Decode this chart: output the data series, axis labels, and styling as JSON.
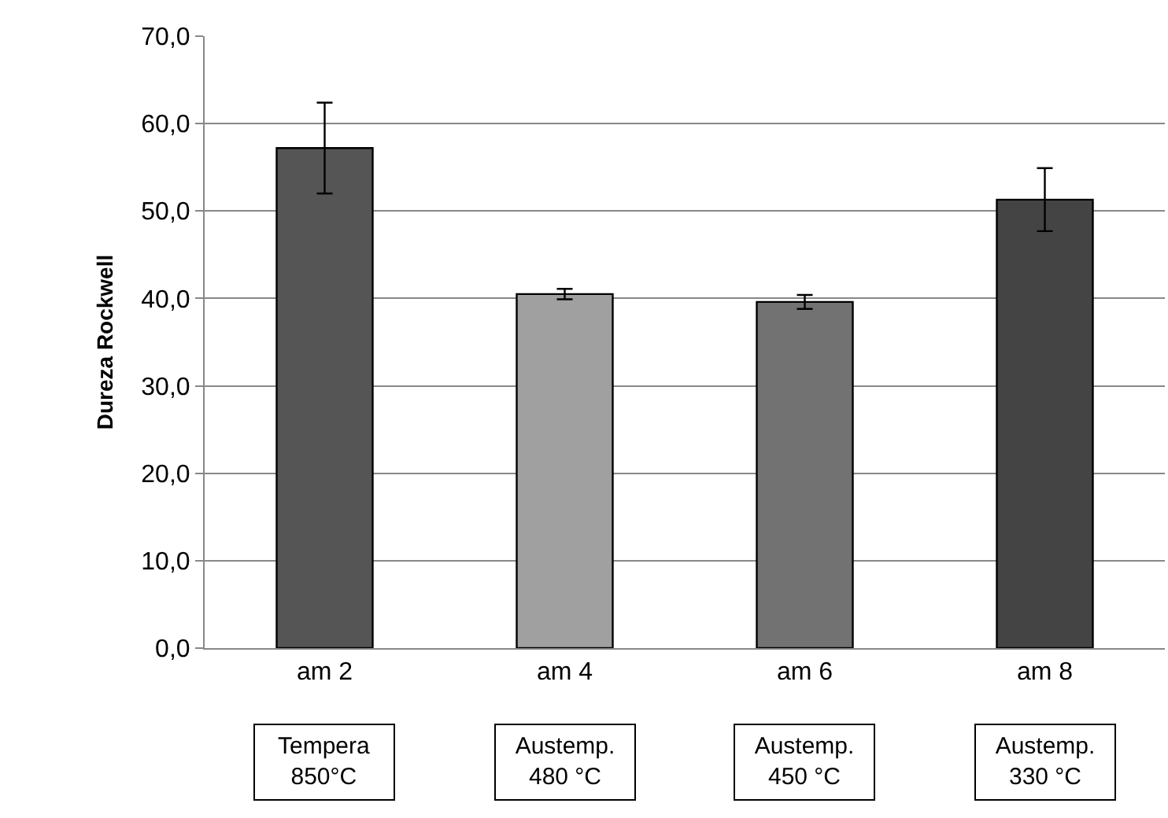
{
  "chart_data": {
    "type": "bar",
    "ylabel": "Dureza Rockwell",
    "categories": [
      "am 2",
      "am 4",
      "am 6",
      "am 8"
    ],
    "values": [
      57.2,
      40.5,
      39.6,
      51.3
    ],
    "colors": [
      "#555555",
      "#a0a0a0",
      "#727272",
      "#444444"
    ],
    "errors": [
      5.2,
      0.6,
      0.8,
      3.6
    ],
    "ylim": [
      0,
      70
    ],
    "yticks": [
      {
        "value": 0,
        "label": "0,0"
      },
      {
        "value": 10,
        "label": "10,0"
      },
      {
        "value": 20,
        "label": "20,0"
      },
      {
        "value": 30,
        "label": "30,0"
      },
      {
        "value": 40,
        "label": "40,0"
      },
      {
        "value": 50,
        "label": "50,0"
      },
      {
        "value": 60,
        "label": "60,0"
      },
      {
        "value": 70,
        "label": "70,0"
      }
    ],
    "grid": "y",
    "annotations": [
      "Tempera\n850°C",
      "Austemp.\n480 °C",
      "Austemp.\n450 °C",
      "Austemp.\n330 °C"
    ]
  }
}
